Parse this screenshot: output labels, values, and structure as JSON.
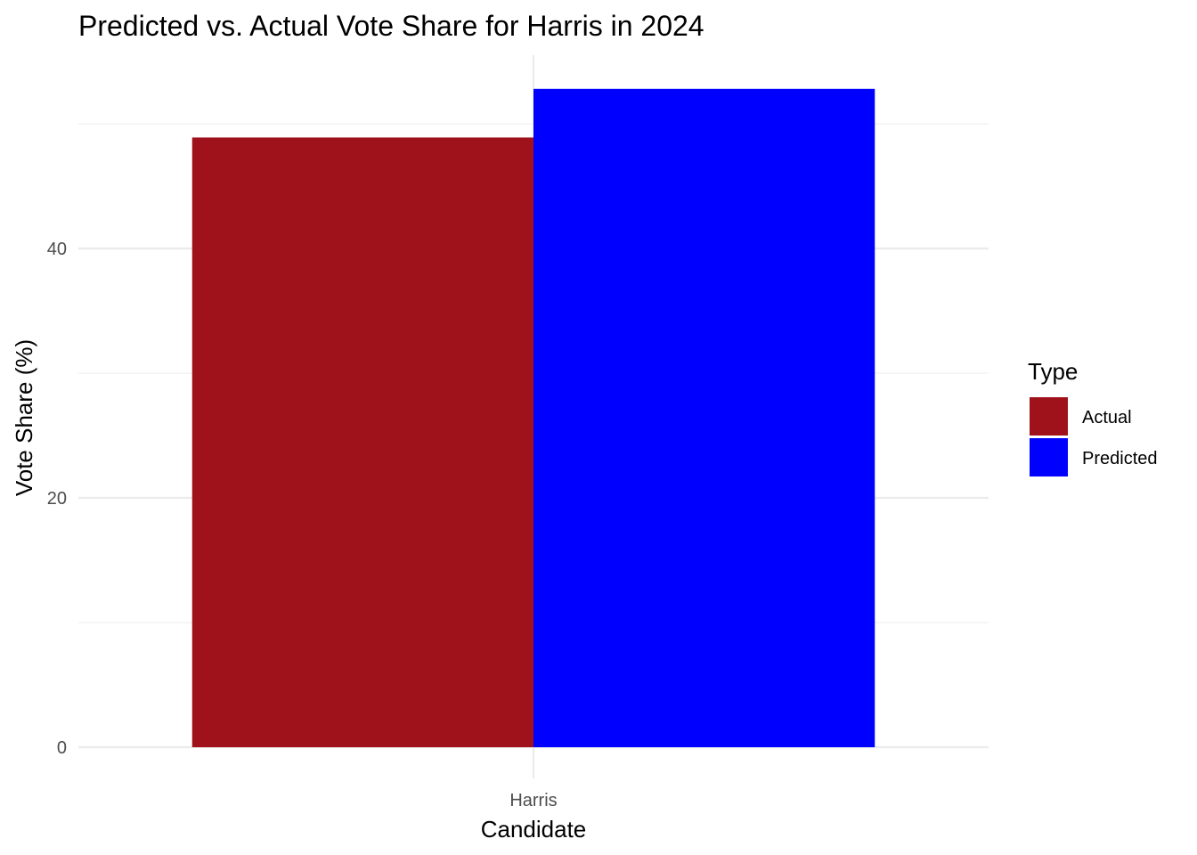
{
  "chart_data": {
    "type": "bar",
    "title": "Predicted vs. Actual Vote Share for Harris in 2024",
    "xlabel": "Candidate",
    "ylabel": "Vote Share (%)",
    "categories": [
      "Harris"
    ],
    "series": [
      {
        "name": "Actual",
        "values": [
          48.9
        ],
        "color": "#A0121B"
      },
      {
        "name": "Predicted",
        "values": [
          52.8
        ],
        "color": "#0000FF"
      }
    ],
    "ylim": [
      0,
      55.5
    ],
    "y_ticks": [
      0,
      20,
      40
    ],
    "y_minor_ticks": [
      10,
      30,
      50
    ],
    "grid": true,
    "legend": {
      "title": "Type",
      "placement": "right"
    }
  }
}
